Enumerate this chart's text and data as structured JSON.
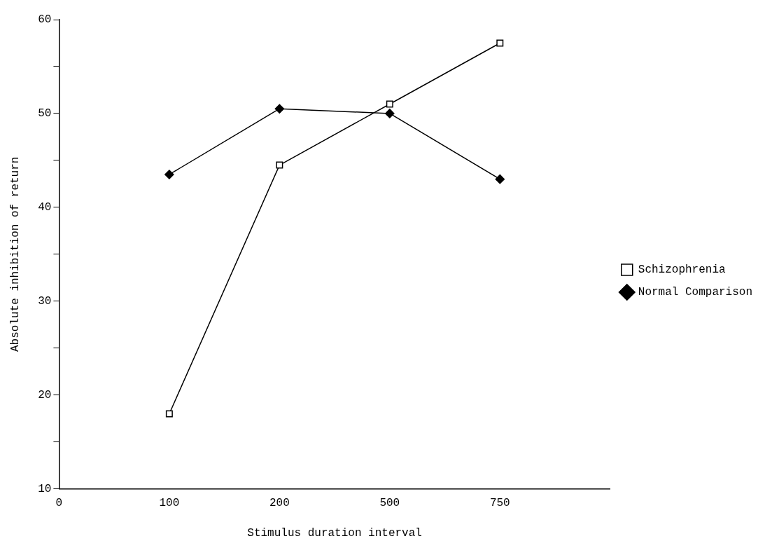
{
  "chart_data": {
    "type": "line",
    "xlabel": "Stimulus duration interval",
    "ylabel": "Absolute inhibition of return",
    "categories": [
      "0",
      "100",
      "200",
      "500",
      "750",
      null
    ],
    "series": [
      {
        "name": "Schizophrenia",
        "color": "#000000",
        "marker": "square",
        "values": [
          null,
          18,
          44.5,
          51,
          57.5,
          null
        ]
      },
      {
        "name": "Normal Comparison",
        "color": "#000000",
        "marker": "diamond",
        "values": [
          null,
          43.5,
          50.5,
          50,
          43,
          null
        ]
      }
    ],
    "ylim": [
      10,
      60
    ],
    "yticks": [
      10,
      {
        "value": 15,
        "label": null
      },
      20,
      {
        "value": 25,
        "label": null
      },
      30,
      {
        "value": 35,
        "label": null
      },
      40,
      {
        "value": 45,
        "label": null
      },
      50,
      {
        "value": 55,
        "label": null
      },
      60
    ],
    "grid": false,
    "legend": "right",
    "line_style": "solid"
  }
}
